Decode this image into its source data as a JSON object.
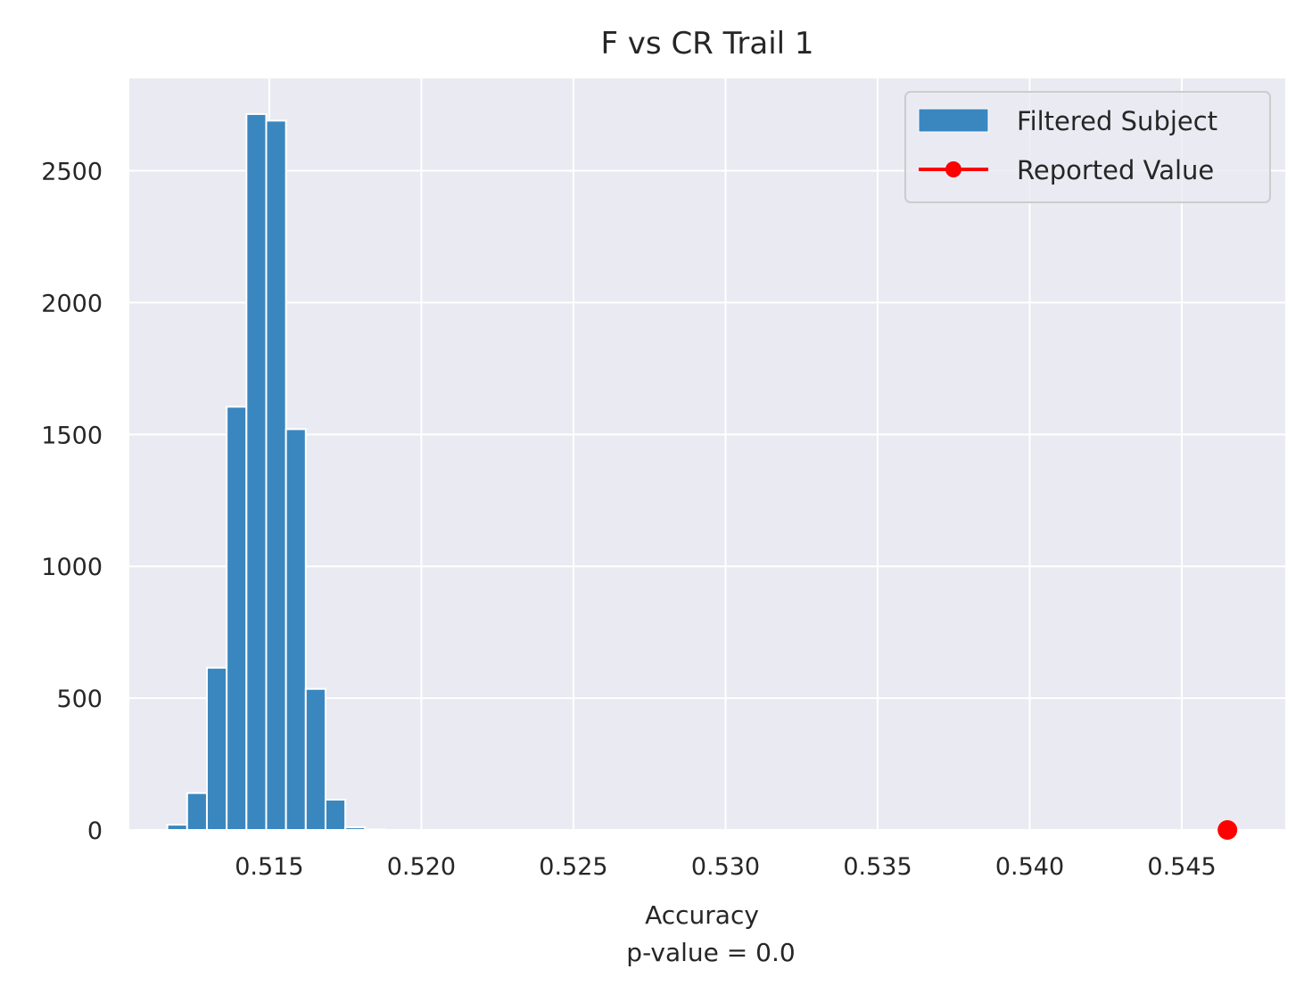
{
  "chart_data": {
    "type": "bar",
    "title": "F vs CR Trail 1",
    "xlabel": "Accuracy",
    "xlabel_sub": "p-value = 0.0",
    "ylabel": "",
    "xlim": [
      0.5104,
      0.5484
    ],
    "ylim": [
      0,
      2850
    ],
    "xticks": [
      0.515,
      0.52,
      0.525,
      0.53,
      0.535,
      0.54,
      0.545
    ],
    "xtick_labels": [
      "0.515",
      "0.520",
      "0.525",
      "0.530",
      "0.535",
      "0.540",
      "0.545"
    ],
    "yticks": [
      0,
      500,
      1000,
      1500,
      2000,
      2500
    ],
    "ytick_labels": [
      "0",
      "500",
      "1000",
      "1500",
      "2000",
      "2500"
    ],
    "grid": true,
    "legend_position": "top-right",
    "bin_width": 0.00065,
    "histogram": {
      "name": "Filtered Subject",
      "color": "#3a87c0",
      "bin_starts": [
        0.51165,
        0.5123,
        0.51295,
        0.5136,
        0.51425,
        0.5149,
        0.51555,
        0.5162,
        0.51685,
        0.5175,
        0.51815
      ],
      "counts": [
        20,
        140,
        615,
        1605,
        2715,
        2690,
        1520,
        535,
        115,
        10,
        2
      ]
    },
    "reported_value": {
      "name": "Reported Value",
      "color": "#ff0000",
      "x": 0.5465,
      "y": 0
    }
  }
}
